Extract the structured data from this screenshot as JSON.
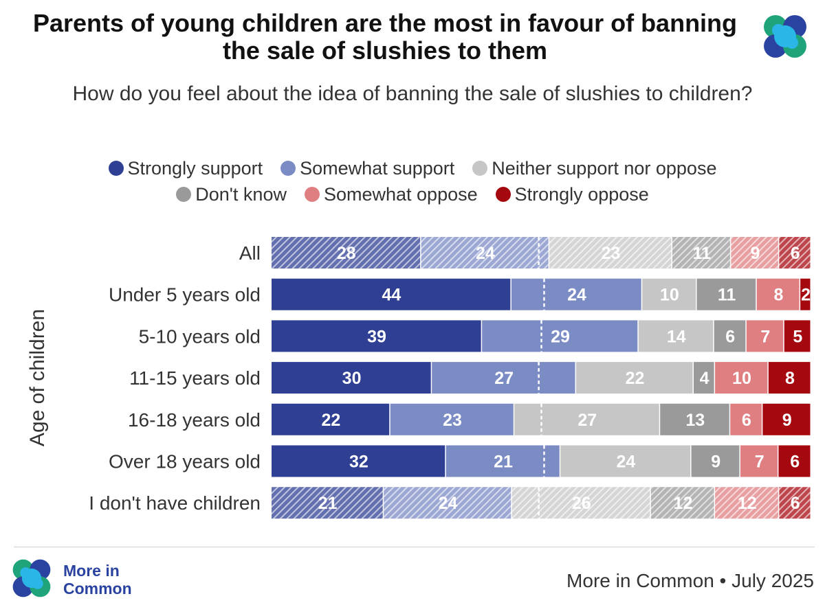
{
  "title": "Parents of young children are the most in favour of banning the sale of slushies to them",
  "subtitle": "How do you feel about the idea of banning the sale of slushies to children?",
  "footer": {
    "brand_line1": "More in",
    "brand_line2": "Common",
    "source": "More in Common • July 2025"
  },
  "colors": {
    "strongly_support": "#2f3f93",
    "somewhat_support": "#7b8bc4",
    "neither": "#c6c6c6",
    "dont_know": "#9a9a9a",
    "somewhat_oppose": "#e07f82",
    "strongly_oppose": "#a5080e",
    "logo_blue": "#2a43a0",
    "logo_cyan": "#2ab7e8",
    "logo_green": "#1fa37a"
  },
  "chart_data": {
    "type": "bar",
    "orientation": "horizontal",
    "stacked": true,
    "ylabel": "Age of children",
    "legend_position": "top",
    "categories": [
      "All",
      "Under 5 years old",
      "5-10 years old",
      "11-15 years old",
      "16-18 years old",
      "Over 18 years old",
      "I don't have children"
    ],
    "hatched_categories": [
      "All",
      "I don't have children"
    ],
    "midpoint_marker": 50,
    "series": [
      {
        "name": "Strongly support",
        "color": "#2f3f93",
        "values": [
          28,
          44,
          39,
          30,
          22,
          32,
          21
        ]
      },
      {
        "name": "Somewhat support",
        "color": "#7b8bc4",
        "values": [
          24,
          24,
          29,
          27,
          23,
          21,
          24
        ]
      },
      {
        "name": "Neither support nor oppose",
        "color": "#c6c6c6",
        "values": [
          23,
          10,
          14,
          22,
          27,
          24,
          26
        ]
      },
      {
        "name": "Don't know",
        "color": "#9a9a9a",
        "values": [
          11,
          11,
          6,
          4,
          13,
          9,
          12
        ]
      },
      {
        "name": "Somewhat oppose",
        "color": "#e07f82",
        "values": [
          9,
          8,
          7,
          10,
          6,
          7,
          12
        ]
      },
      {
        "name": "Strongly oppose",
        "color": "#a5080e",
        "values": [
          6,
          2,
          5,
          8,
          9,
          6,
          6
        ]
      }
    ]
  }
}
